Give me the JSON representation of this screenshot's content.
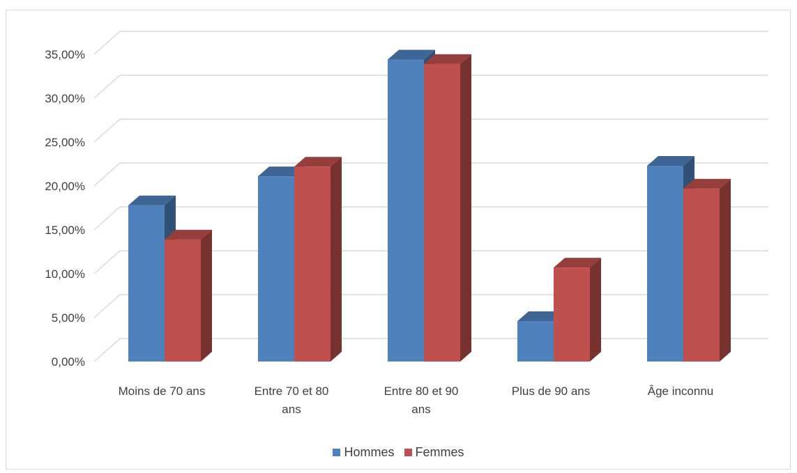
{
  "chart_data": {
    "type": "bar",
    "style": "3d-clustered-column",
    "categories": [
      [
        "Moins de 70 ans"
      ],
      [
        "Entre 70 et 80",
        "ans"
      ],
      [
        "Entre 80 et 90",
        "ans"
      ],
      [
        "Plus de 90 ans"
      ],
      [
        "Âge inconnu"
      ]
    ],
    "series": [
      {
        "name": "Hommes",
        "color": "#4f81bd",
        "values": [
          17.8,
          21.1,
          34.4,
          4.6,
          22.3
        ]
      },
      {
        "name": "Femmes",
        "color": "#c0504d",
        "values": [
          13.9,
          22.2,
          33.9,
          10.7,
          19.7
        ]
      }
    ],
    "y_tick_labels": [
      "0,00%",
      "5,00%",
      "10,00%",
      "15,00%",
      "20,00%",
      "25,00%",
      "30,00%",
      "35,00%"
    ],
    "ylim": [
      0,
      35
    ],
    "grid": true,
    "legend_position": "bottom",
    "title": "",
    "xlabel": "",
    "ylabel": ""
  }
}
